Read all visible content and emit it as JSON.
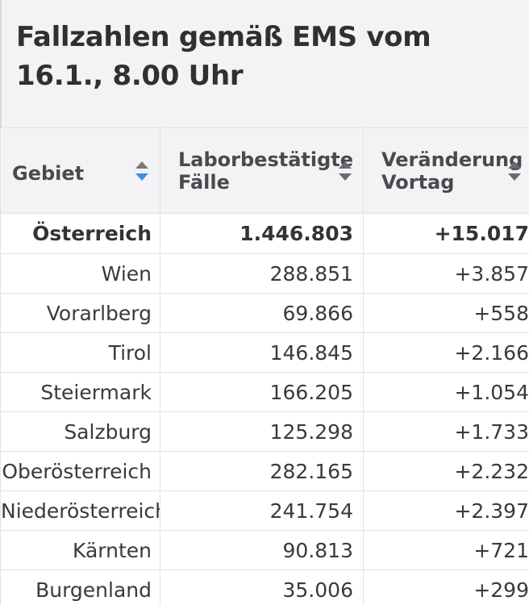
{
  "title": "Fallzahlen gemäß EMS vom 16.1., 8.00 Uhr",
  "columns": [
    {
      "label": "Gebiet",
      "sort_icon": "sort-desc-icon"
    },
    {
      "label": "Laborbestätigte Fälle",
      "sort_icon": "sort-icon"
    },
    {
      "label": "Veränderung Vortag",
      "sort_icon": "sort-icon"
    }
  ],
  "rows": [
    {
      "gebiet": "Österreich",
      "faelle": "1.446.803",
      "veraenderung": "+15.017"
    },
    {
      "gebiet": "Wien",
      "faelle": "288.851",
      "veraenderung": "+3.857"
    },
    {
      "gebiet": "Vorarlberg",
      "faelle": "69.866",
      "veraenderung": "+558"
    },
    {
      "gebiet": "Tirol",
      "faelle": "146.845",
      "veraenderung": "+2.166"
    },
    {
      "gebiet": "Steiermark",
      "faelle": "166.205",
      "veraenderung": "+1.054"
    },
    {
      "gebiet": "Salzburg",
      "faelle": "125.298",
      "veraenderung": "+1.733"
    },
    {
      "gebiet": "Oberösterreich",
      "faelle": "282.165",
      "veraenderung": "+2.232"
    },
    {
      "gebiet": "Niederösterreich",
      "faelle": "241.754",
      "veraenderung": "+2.397"
    },
    {
      "gebiet": "Kärnten",
      "faelle": "90.813",
      "veraenderung": "+721"
    },
    {
      "gebiet": "Burgenland",
      "faelle": "35.006",
      "veraenderung": "+299"
    }
  ],
  "colors": {
    "header_bg": "#f3f3f5",
    "border": "#e2e2e6",
    "sort_active": "#3d8fe0",
    "text": "#333333"
  }
}
